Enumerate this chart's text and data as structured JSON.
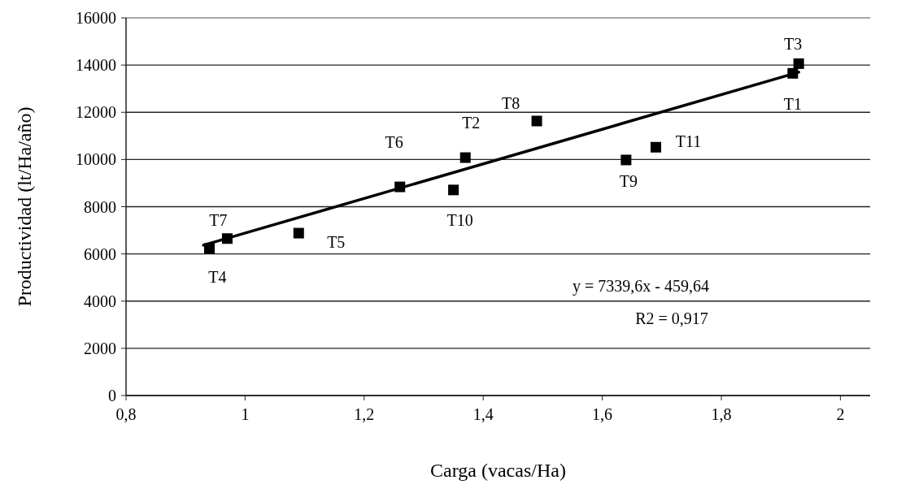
{
  "chart_data": {
    "type": "scatter",
    "xlabel": "Carga (vacas/Ha)",
    "ylabel": "Productividad (lt/Ha/año)",
    "xlim": [
      0.8,
      2.05
    ],
    "xticks": [
      {
        "value": 0.8,
        "label": "0,8"
      },
      1,
      {
        "value": 1.2,
        "label": "1,2"
      },
      {
        "value": 1.4,
        "label": "1,4"
      },
      {
        "value": 1.6,
        "label": "1,6"
      },
      {
        "value": 1.8,
        "label": "1,8"
      },
      2
    ],
    "ylim": [
      0,
      16000
    ],
    "yticks": [
      0,
      2000,
      4000,
      6000,
      8000,
      10000,
      12000,
      14000,
      16000
    ],
    "grid": "y",
    "marker": "square",
    "series": [
      {
        "color": "#000000",
        "x": [
          1.92,
          1.37,
          1.93,
          0.94,
          1.09,
          1.26,
          0.97,
          1.49,
          1.64,
          1.35,
          1.69
        ],
        "values": [
          13650,
          10080,
          14060,
          6230,
          6880,
          8840,
          6650,
          11630,
          9980,
          8710,
          10520
        ]
      },
      {
        "type": "line",
        "color": "#000000",
        "line_style": "solid",
        "marker": "none",
        "x": [
          0.93,
          1.93
        ],
        "values": [
          6370,
          13700
        ]
      }
    ],
    "annotations": [
      {
        "text": "T1",
        "x": 1.92,
        "y": 13650
      },
      {
        "text": "T2",
        "x": 1.37,
        "y": 10080
      },
      {
        "text": "T3",
        "x": 1.93,
        "y": 14060
      },
      {
        "text": "T4",
        "x": 0.94,
        "y": 6230
      },
      {
        "text": "T5",
        "x": 1.09,
        "y": 6880
      },
      {
        "text": "T6",
        "x": 1.26,
        "y": 8840
      },
      {
        "text": "T7",
        "x": 0.97,
        "y": 6650
      },
      {
        "text": "T8",
        "x": 1.49,
        "y": 11630
      },
      {
        "text": "T9",
        "x": 1.64,
        "y": 9980
      },
      {
        "text": "T10",
        "x": 1.35,
        "y": 8710
      },
      {
        "text": "T11",
        "x": 1.69,
        "y": 10520
      },
      "y = 7339,6x - 459,64",
      "R2 = 0,917"
    ]
  }
}
